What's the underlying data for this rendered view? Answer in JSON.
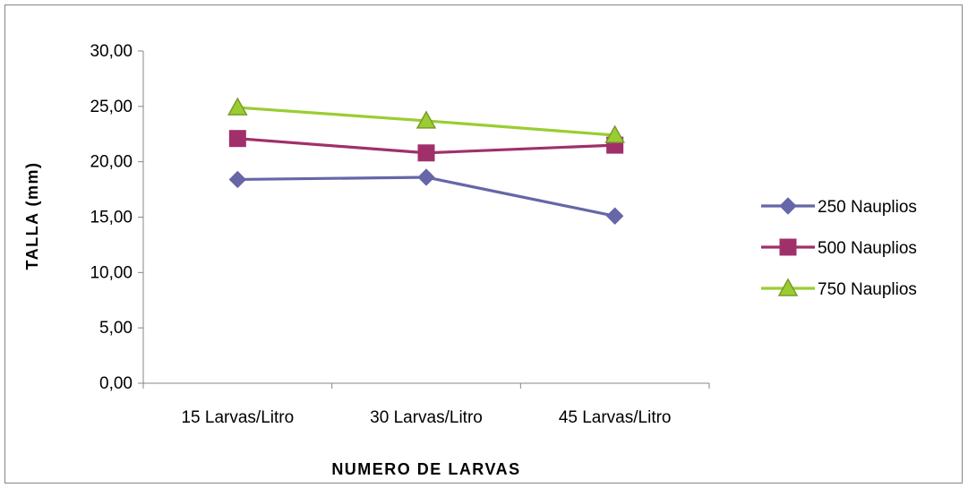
{
  "chart_data": {
    "type": "line",
    "title": "",
    "xlabel": "NUMERO DE LARVAS",
    "ylabel": "TALLA (mm)",
    "categories": [
      "15 Larvas/Litro",
      "30 Larvas/Litro",
      "45 Larvas/Litro"
    ],
    "ylim": [
      0,
      30
    ],
    "yticks": [
      0,
      5,
      10,
      15,
      20,
      25,
      30
    ],
    "ytick_labels": [
      "0,00",
      "5,00",
      "10,00",
      "15,00",
      "20,00",
      "25,00",
      "30,00"
    ],
    "grid": false,
    "legend_position": "right",
    "series": [
      {
        "name": "250 Nauplios",
        "values": [
          18.4,
          18.6,
          15.1
        ],
        "color": "#6666A8",
        "marker": "diamond"
      },
      {
        "name": "500 Nauplios",
        "values": [
          22.1,
          20.8,
          21.5
        ],
        "color": "#A0306A",
        "marker": "square"
      },
      {
        "name": "750 Nauplios",
        "values": [
          24.9,
          23.7,
          22.4
        ],
        "color": "#9ACD32",
        "marker": "triangle"
      }
    ]
  }
}
